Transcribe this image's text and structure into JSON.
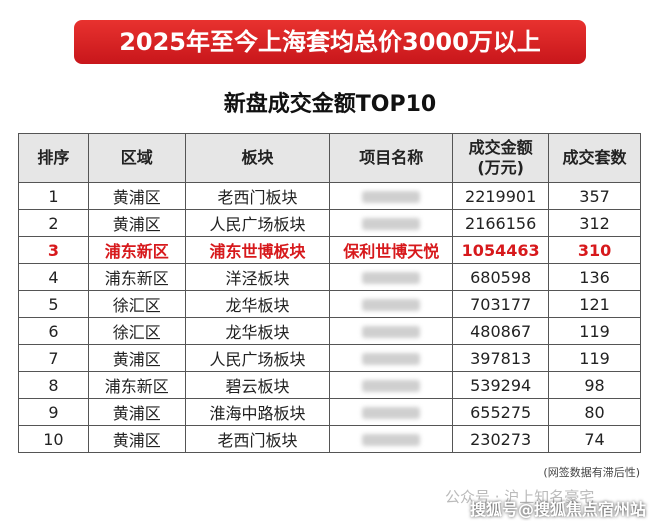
{
  "banner": "2025年至今上海套均总价3000万以上",
  "title": "新盘成交金额TOP10",
  "table": {
    "headers": [
      "排序",
      "区域",
      "板块",
      "项目名称",
      "成交金额\n(万元)",
      "成交套数"
    ],
    "highlight_row": 2,
    "highlight_color": "#d7191c",
    "rows": [
      [
        1,
        "黄浦区",
        "老西门板块",
        null,
        2219901,
        357
      ],
      [
        2,
        "黄浦区",
        "人民广场板块",
        null,
        2166156,
        312
      ],
      [
        3,
        "浦东新区",
        "浦东世博板块",
        "保利世博天悦",
        1054463,
        310
      ],
      [
        4,
        "浦东新区",
        "洋泾板块",
        null,
        680598,
        136
      ],
      [
        5,
        "徐汇区",
        "龙华板块",
        null,
        703177,
        121
      ],
      [
        6,
        "徐汇区",
        "龙华板块",
        null,
        480867,
        119
      ],
      [
        7,
        "黄浦区",
        "人民广场板块",
        null,
        397813,
        119
      ],
      [
        8,
        "浦东新区",
        "碧云板块",
        null,
        539294,
        98
      ],
      [
        9,
        "黄浦区",
        "淮海中路板块",
        null,
        655275,
        80
      ],
      [
        10,
        "黄浦区",
        "老西门板块",
        null,
        230273,
        74
      ]
    ]
  },
  "note": "(网签数据有滞后性)",
  "watermarks": [
    "公众号 · 沪上知名豪宅",
    "搜狐号@搜狐焦点宿州站"
  ]
}
